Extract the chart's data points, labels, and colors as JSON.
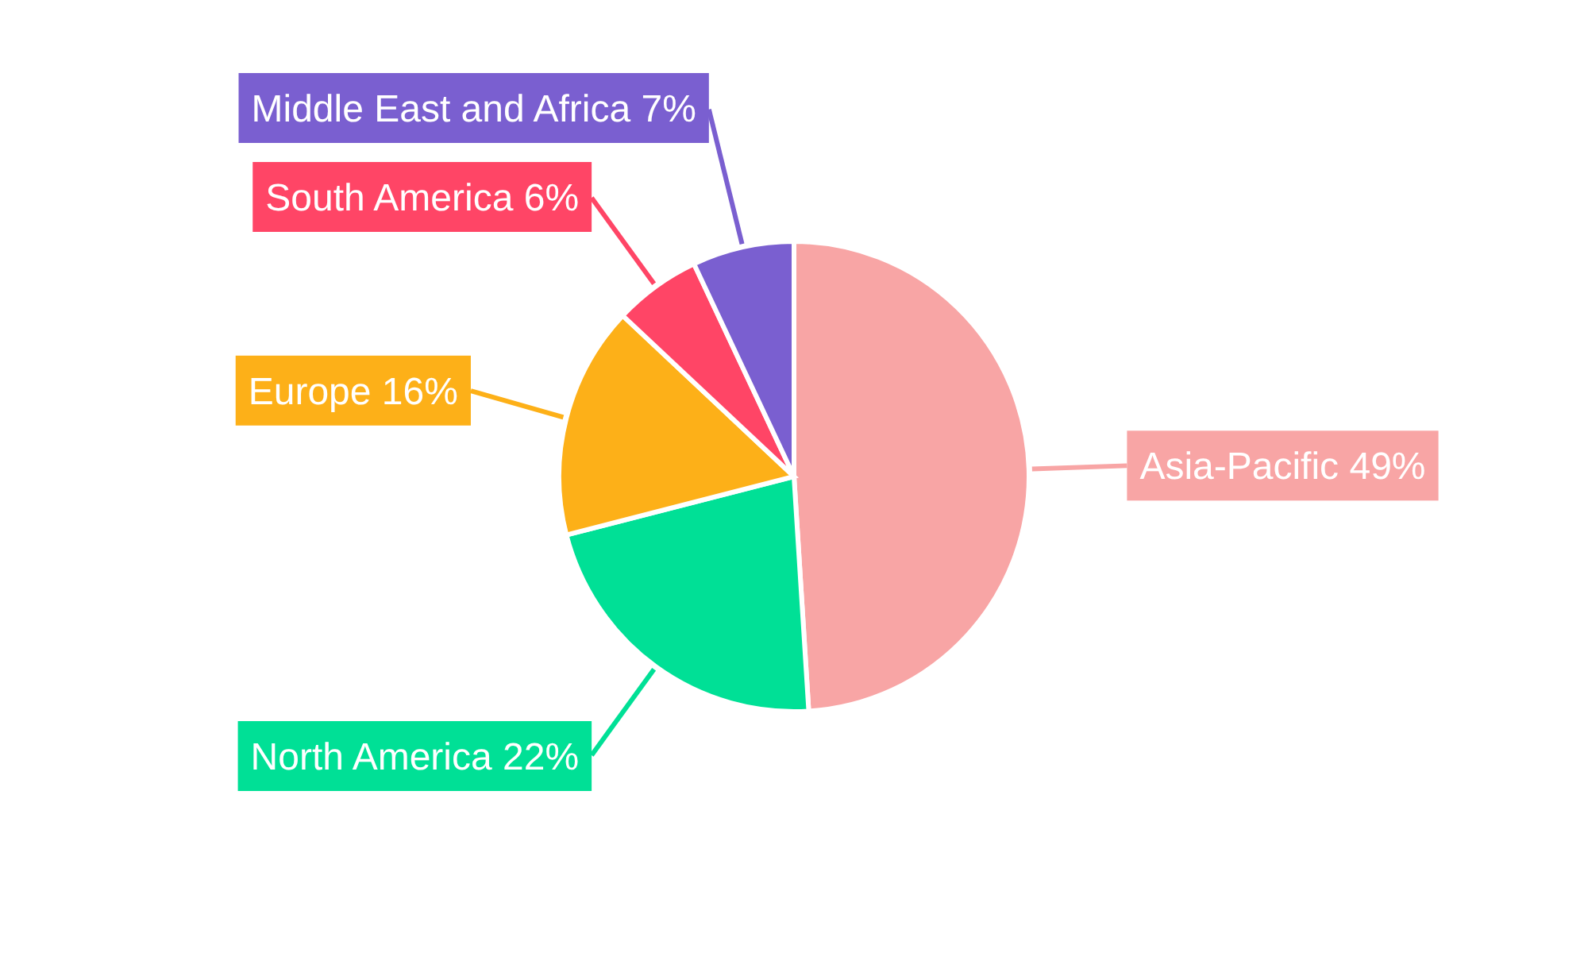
{
  "chart_data": {
    "type": "pie",
    "categories": [
      "Asia-Pacific",
      "North America",
      "Europe",
      "South America",
      "Middle East and Africa"
    ],
    "values": [
      49,
      22,
      16,
      6,
      7
    ],
    "colors": [
      "#f8a5a5",
      "#00e096",
      "#fdb018",
      "#ff4566",
      "#7a5fd0"
    ],
    "value_labels": [
      "49%",
      "22%",
      "16%",
      "6%",
      "7%"
    ]
  }
}
